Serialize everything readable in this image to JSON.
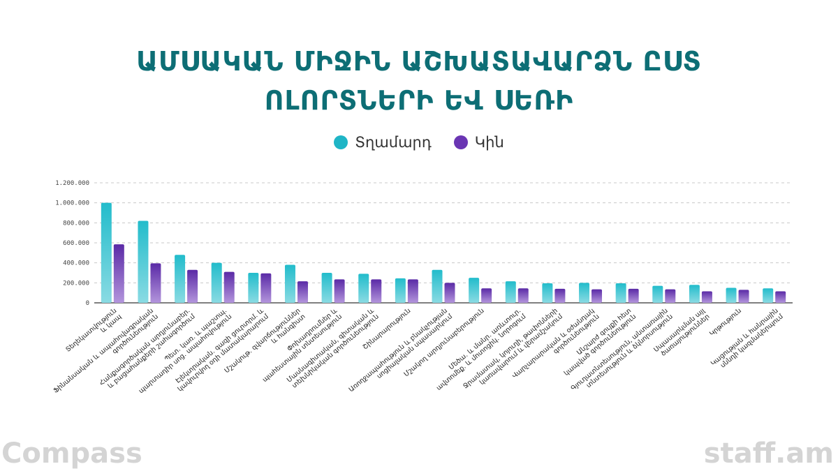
{
  "title_line1": "ԱՄՍԱԿԱՆ ՄԻՋԻՆ ԱՇԽԱՏԱՎԱՐՁՆ ԸՍՏ",
  "title_line2": "ՈԼՈՐՏՆԵՐԻ ԵՎ ՍԵՌԻ",
  "watermark_left": "Compass",
  "watermark_right": "staff.am",
  "chart_data": {
    "type": "bar",
    "ylim": [
      0,
      1200000
    ],
    "yticks": [
      "0",
      "200.000",
      "400.000",
      "600.000",
      "800.000",
      "1.000.000",
      "1.200.000"
    ],
    "grid": true,
    "legend_position": "top-center",
    "series": [
      {
        "name": "Տղամարդ",
        "color": "#1fb5c6",
        "values": [
          1000000,
          820000,
          480000,
          400000,
          300000,
          380000,
          300000,
          290000,
          245000,
          330000,
          250000,
          215000,
          195000,
          200000,
          195000,
          170000,
          180000,
          150000,
          145000
        ]
      },
      {
        "name": "Կին",
        "color": "#6a35b3",
        "values": [
          585000,
          395000,
          330000,
          310000,
          295000,
          215000,
          235000,
          235000,
          235000,
          200000,
          145000,
          145000,
          140000,
          135000,
          140000,
          135000,
          115000,
          130000,
          115000
        ]
      }
    ],
    "categories": [
      [
        "Տեղեկատվություն",
        "և կապ"
      ],
      [
        "Ֆինանսական և ապահովագրական",
        "գործունեություն"
      ],
      [
        "Հանքագործական արդյունաբեր․",
        "և բացահանքերի շահագործում"
      ],
      [
        "Պետ․ կառ․ և պաշտպ․",
        "պարտադիր սոց․ ապահովություն"
      ],
      [
        "Էլեկտրական․ գազի ցուրտրմ․ և",
        "կավուրվող օդի մատակարարում"
      ],
      [
        "Մշակութ․ զվարճություններ",
        "և հանգիստ"
      ],
      [
        "Փոխադրումներ և",
        "պահեստային տնտեսություն"
      ],
      [
        "Մասնագիտական, գիտական և",
        "տեխնիկական գործունեություն"
      ],
      [
        "Շինարարություն"
      ],
      [
        "Առողջապահություն և բնակչության",
        "սոցիալական սպասարկում"
      ],
      [
        "Մշակող արդյունաբերություն"
      ],
      [
        "Մեծա․ և մանր․ առևտուր․",
        "ավտոմեք․ և մոտոցիկ․ նորոգում"
      ],
      [
        "Ջրամատակ, կոյուղի, թափոնների",
        "կառավարում և վերամշակում"
      ],
      [
        "Վարչարարական և օժանդակ",
        "գործունեություն"
      ],
      [
        "Անշարժ գույքի հետ",
        "կապված գործունեություն"
      ],
      [
        "Գյուղատնտեսություն, անտառային",
        "տնտեսություն և ձկնորսություն"
      ],
      [
        "Սպասարկման այլ",
        "ծառայություններ"
      ],
      [
        "Կրթություն"
      ],
      [
        "Կացության և հանրային",
        "սննդի կազմակերպում"
      ]
    ]
  }
}
